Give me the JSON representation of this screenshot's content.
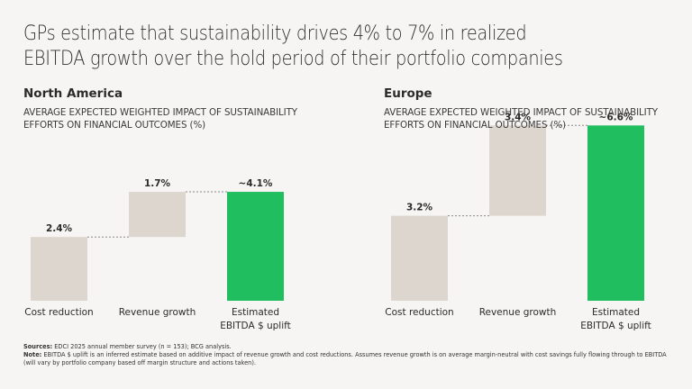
{
  "title": "GPs estimate that sustainability drives 4% to 7% in realized EBITDA growth over the hold period of their portfolio companies",
  "colors": {
    "background": "#f6f5f3",
    "increment_bar": "#ddd6ce",
    "total_bar": "#21be5f",
    "connector": "#8a8a8a",
    "text": "#2b2b2b"
  },
  "chart_data": [
    {
      "type": "bar",
      "subtype": "waterfall",
      "title": "North America",
      "subtitle": "AVERAGE EXPECTED WEIGHTED IMPACT OF SUSTAINABILITY EFFORTS ON FINANCIAL OUTCOMES (%)",
      "categories": [
        "Cost reduction",
        "Revenue growth",
        "Estimated EBITDA $ uplift"
      ],
      "category_lines": [
        [
          "Cost reduction"
        ],
        [
          "Revenue growth"
        ],
        [
          "Estimated",
          "EBITDA $ uplift"
        ]
      ],
      "values": [
        2.4,
        1.7,
        4.1
      ],
      "bar_kinds": [
        "increment",
        "increment",
        "total"
      ],
      "data_labels": [
        "2.4%",
        "1.7%",
        "~4.1%"
      ],
      "xlabel": "",
      "ylabel": "",
      "ylim": [
        0,
        7
      ],
      "grid": false,
      "legend": "none"
    },
    {
      "type": "bar",
      "subtype": "waterfall",
      "title": "Europe",
      "subtitle": "AVERAGE EXPECTED WEIGHTED IMPACT OF SUSTAINABILITY EFFORTS ON FINANCIAL OUTCOMES (%)",
      "categories": [
        "Cost reduction",
        "Revenue growth",
        "Estimated EBITDA $ uplift"
      ],
      "category_lines": [
        [
          "Cost reduction"
        ],
        [
          "Revenue growth"
        ],
        [
          "Estimated",
          "EBITDA $ uplift"
        ]
      ],
      "values": [
        3.2,
        3.4,
        6.6
      ],
      "bar_kinds": [
        "increment",
        "increment",
        "total"
      ],
      "data_labels": [
        "3.2%",
        "3.4%",
        "~6.6%"
      ],
      "xlabel": "",
      "ylabel": "",
      "ylim": [
        0,
        7
      ],
      "grid": false,
      "legend": "none"
    }
  ],
  "footer": {
    "sources_label": "Sources:",
    "sources_text": " EDCI 2025 annual member survey (n = 153); BCG analysis.",
    "note_label": "Note:",
    "note_text": " EBITDA $ uplift is an inferred estimate based on additive impact of revenue growth and cost reductions. Assumes revenue growth is on average margin-neutral with cost savings fully flowing through to EBITDA (will vary by portfolio company based off margin structure and actions taken)."
  }
}
